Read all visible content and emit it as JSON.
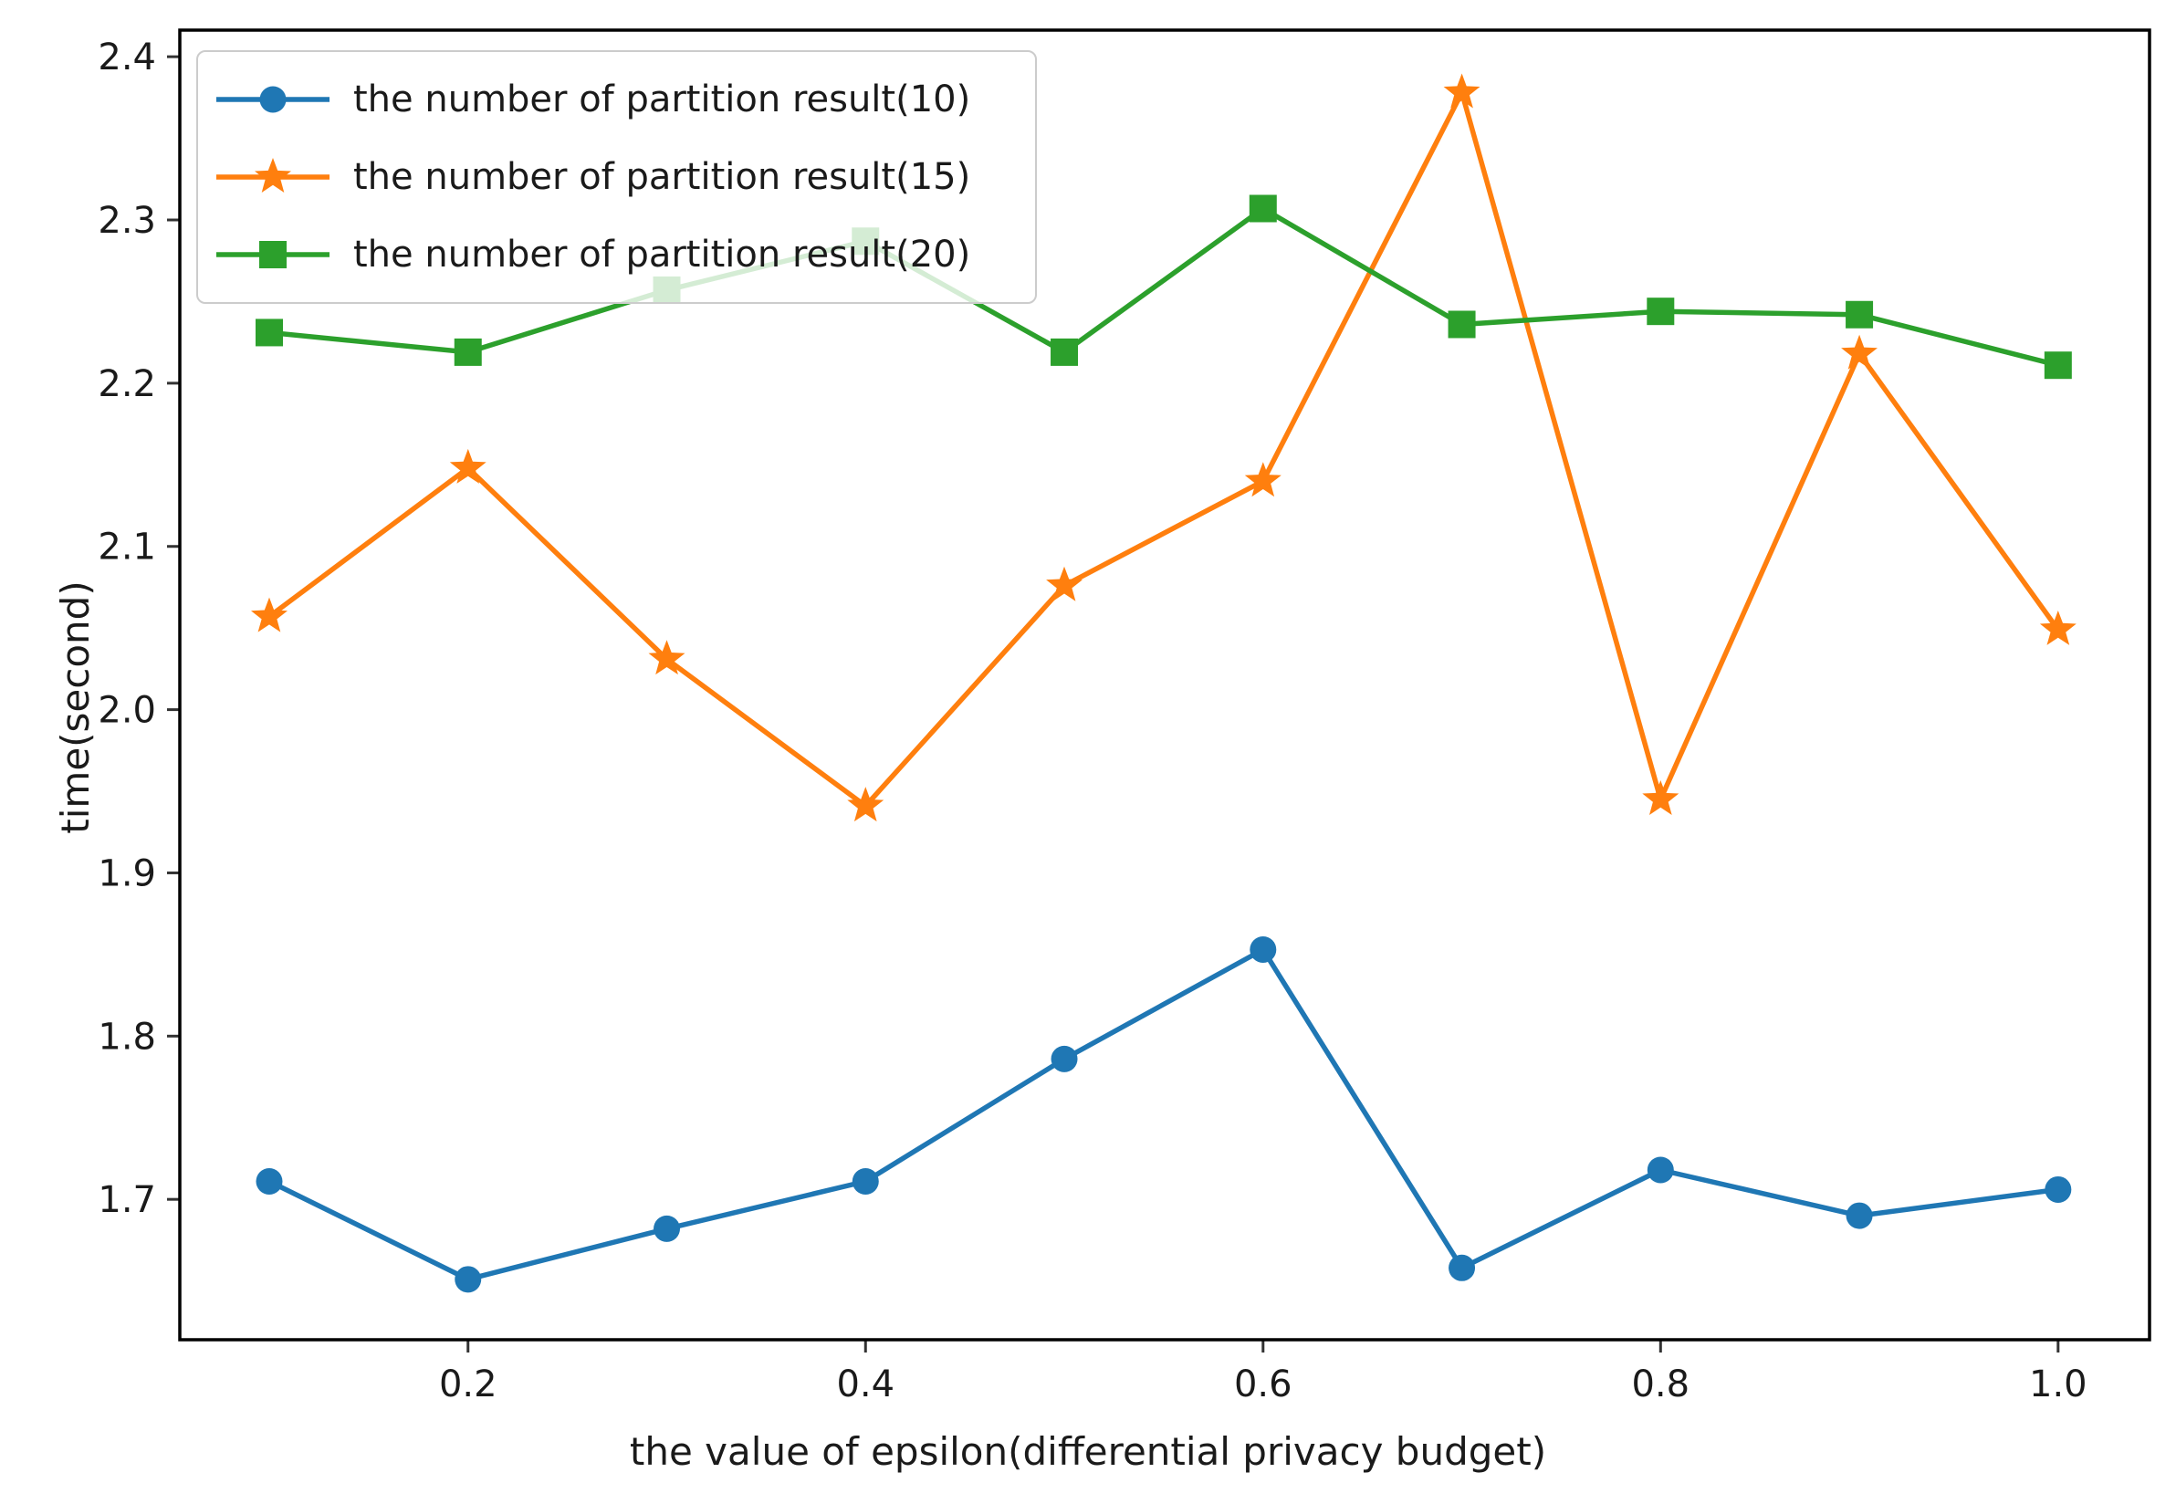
{
  "chart_data": {
    "type": "line",
    "title": "",
    "xlabel": "the value of epsilon(differential privacy budget)",
    "ylabel": "time(second)",
    "x": [
      0.1,
      0.2,
      0.3,
      0.4,
      0.5,
      0.6,
      0.7,
      0.8,
      0.9,
      1.0
    ],
    "xticks": [
      0.2,
      0.4,
      0.6,
      0.8,
      1.0
    ],
    "xtick_labels": [
      "0.2",
      "0.4",
      "0.6",
      "0.8",
      "1.0"
    ],
    "yticks": [
      1.7,
      1.8,
      1.9,
      2.0,
      2.1,
      2.2,
      2.3,
      2.4
    ],
    "ytick_labels": [
      "1.7",
      "1.8",
      "1.9",
      "2.0",
      "2.1",
      "2.2",
      "2.3",
      "2.4"
    ],
    "xlim": [
      0.055,
      1.046
    ],
    "ylim": [
      1.614,
      2.4163
    ],
    "grid": false,
    "legend_position": "upper left",
    "series": [
      {
        "name": "the number of partition result(10)",
        "marker": "circle",
        "color": "#1f77b4",
        "values": [
          1.711,
          1.651,
          1.682,
          1.711,
          1.786,
          1.853,
          1.658,
          1.718,
          1.69,
          1.706
        ]
      },
      {
        "name": "the number of partition result(15)",
        "marker": "star",
        "color": "#ff7f0e",
        "values": [
          2.057,
          2.148,
          2.031,
          1.941,
          2.076,
          2.14,
          2.378,
          1.945,
          2.218,
          2.049
        ]
      },
      {
        "name": "the number of partition result(20)",
        "marker": "square",
        "color": "#2ca02c",
        "values": [
          2.231,
          2.219,
          2.257,
          2.287,
          2.219,
          2.307,
          2.236,
          2.244,
          2.242,
          2.211
        ]
      }
    ],
    "plot_style": {
      "spine_color": "#000000",
      "tick_color": "#333333",
      "text_color": "#1a1a1a",
      "legend_border_color": "#cccccc"
    }
  }
}
